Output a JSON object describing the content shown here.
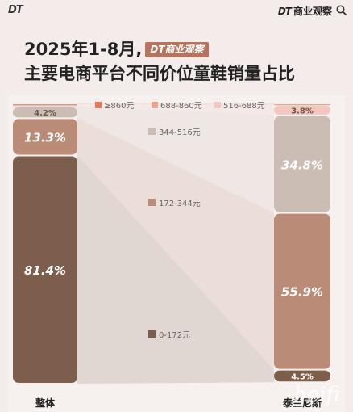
{
  "header": {
    "brand_left": "DT",
    "brand_right_dt": "DT",
    "brand_right_text": "商业观察",
    "search_icon": "search-icon"
  },
  "title": {
    "line1": "2025年1-8月,",
    "badge": "DT商业观察",
    "line2": "主要电商平台不同价位童鞋销量占比"
  },
  "watermark": "heifi",
  "colors": {
    "c_ge860": "#e07a5a",
    "c_688_860": "#e7a58f",
    "c_516_688": "#f3c7c0",
    "c_344_516": "#cbbdb4",
    "c_172_344": "#ba8b76",
    "c_0_172": "#7d5d4b"
  },
  "chart_data": {
    "type": "stacked-bar-100",
    "categories": [
      "整体",
      "泰兰尼斯"
    ],
    "series": [
      {
        "name": "≥860元",
        "values": [
          0.1,
          0.0
        ],
        "color": "#e07a5a"
      },
      {
        "name": "688-860元",
        "values": [
          0.3,
          0.5
        ],
        "color": "#e7a58f"
      },
      {
        "name": "516-688元",
        "values": [
          0.7,
          3.8
        ],
        "color": "#f3c7c0"
      },
      {
        "name": "344-516元",
        "values": [
          4.2,
          34.8
        ],
        "color": "#cbbdb4"
      },
      {
        "name": "172-344元",
        "values": [
          13.3,
          55.9
        ],
        "color": "#ba8b76"
      },
      {
        "name": "0-172元",
        "values": [
          81.4,
          4.5
        ],
        "color": "#7d5d4b"
      }
    ],
    "labels": [
      {
        "series": 3,
        "category": 0,
        "text": "4.2%"
      },
      {
        "series": 4,
        "category": 0,
        "text": "13.3%"
      },
      {
        "series": 5,
        "category": 0,
        "text": "81.4%"
      },
      {
        "series": 2,
        "category": 1,
        "text": "3.8%"
      },
      {
        "series": 3,
        "category": 1,
        "text": "34.8%"
      },
      {
        "series": 4,
        "category": 1,
        "text": "55.9%"
      },
      {
        "series": 5,
        "category": 1,
        "text": "4.5%"
      }
    ],
    "legend_top": [
      "≥860元",
      "688-860元",
      "516-688元"
    ],
    "legend_mid": [
      "344-516元",
      "172-344元",
      "0-172元"
    ],
    "unit": "%"
  }
}
